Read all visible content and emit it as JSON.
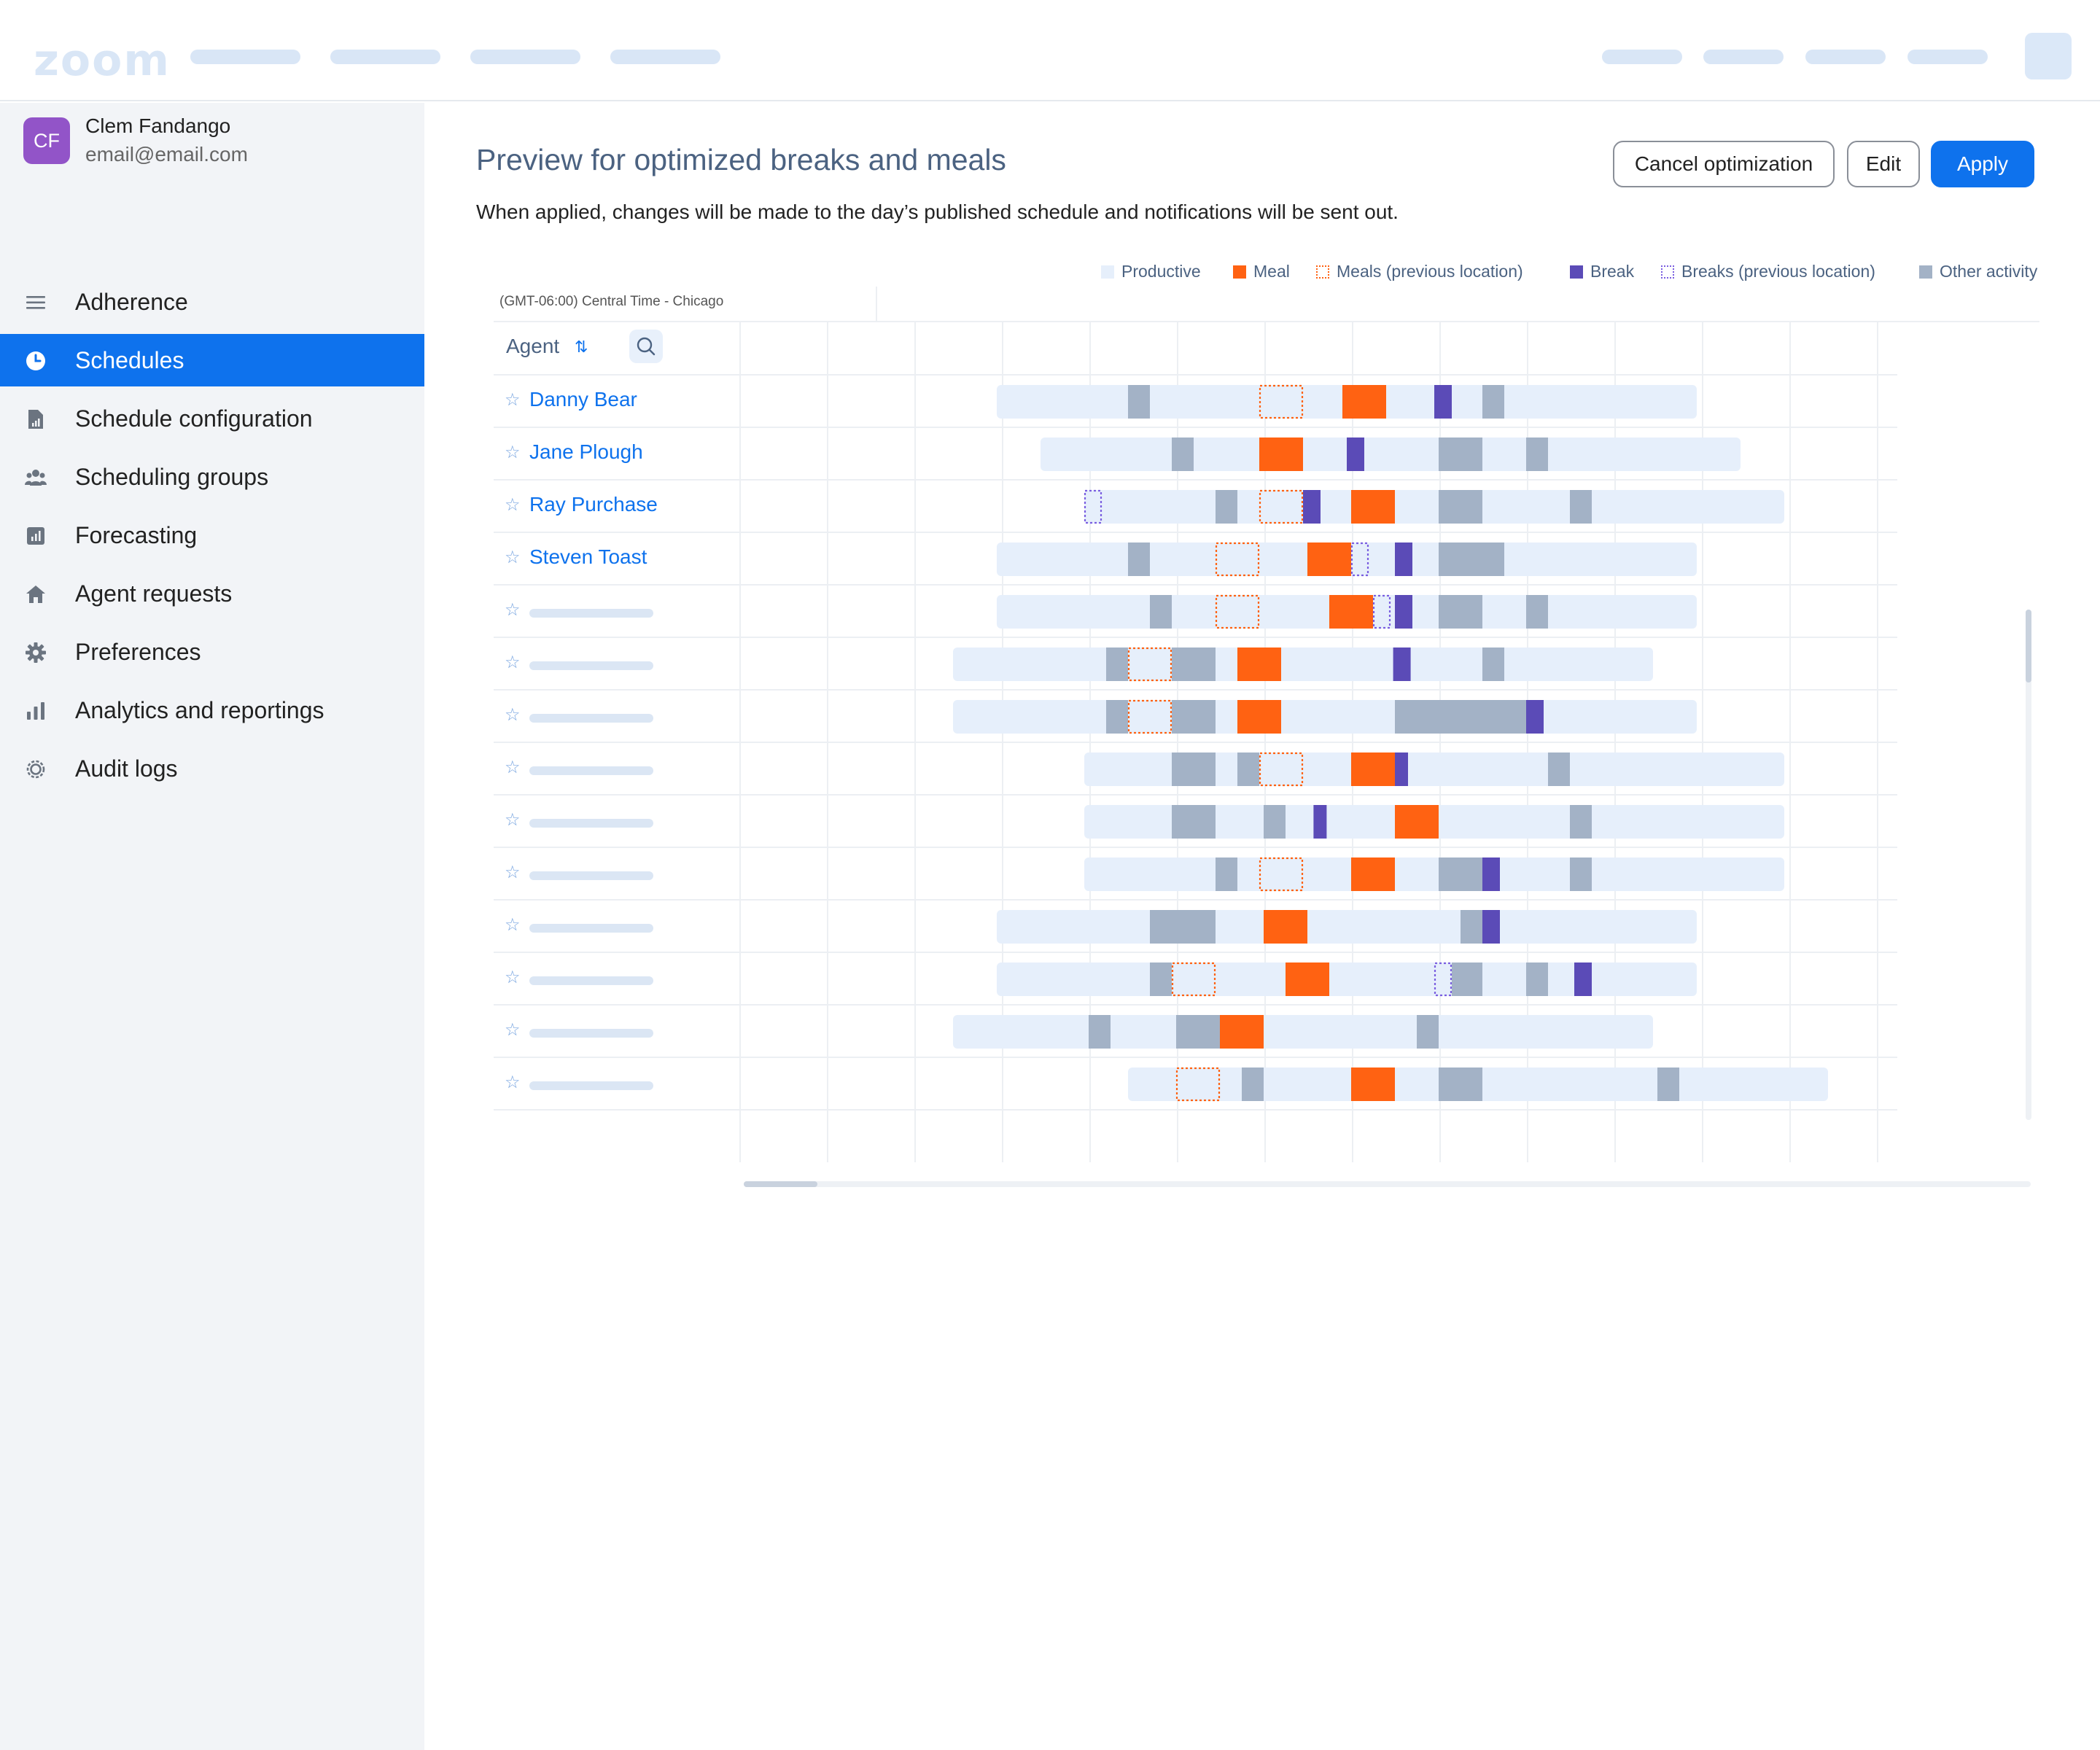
{
  "app": {
    "logo": "zoom"
  },
  "user": {
    "initials": "CF",
    "name": "Clem Fandango",
    "email": "email@email.com"
  },
  "sidebar": {
    "items": [
      {
        "label": "Adherence",
        "icon": "menu-lines-icon",
        "active": false
      },
      {
        "label": "Schedules",
        "icon": "clock-icon",
        "active": true
      },
      {
        "label": "Schedule configuration",
        "icon": "document-chart-icon",
        "active": false
      },
      {
        "label": "Scheduling groups",
        "icon": "users-group-icon",
        "active": false
      },
      {
        "label": "Forecasting",
        "icon": "chart-square-icon",
        "active": false
      },
      {
        "label": "Agent requests",
        "icon": "home-icon",
        "active": false
      },
      {
        "label": "Preferences",
        "icon": "gear-icon",
        "active": false
      },
      {
        "label": "Analytics and reportings",
        "icon": "bar-chart-icon",
        "active": false
      },
      {
        "label": "Audit logs",
        "icon": "cog-outline-icon",
        "active": false
      }
    ]
  },
  "page": {
    "title": "Preview for optimized breaks and meals",
    "description": "When applied, changes will be made to the day’s published schedule and notifications will be sent out.",
    "buttons": {
      "cancel": "Cancel optimization",
      "edit": "Edit",
      "apply": "Apply"
    }
  },
  "legend": [
    {
      "label": "Productive",
      "type": "productive"
    },
    {
      "label": "Meal",
      "type": "meal"
    },
    {
      "label": "Meals (previous location)",
      "type": "meal_prev"
    },
    {
      "label": "Break",
      "type": "break"
    },
    {
      "label": "Breaks (previous location)",
      "type": "break_prev"
    },
    {
      "label": "Other activity",
      "type": "other"
    }
  ],
  "colors": {
    "productive": "#e6effb",
    "meal": "#ff6212",
    "meal_prev": "#ff6212",
    "break": "#5b4bb7",
    "break_prev": "#7a5ee0",
    "other": "#a3b2c6",
    "accent": "#0e72ed"
  },
  "grid": {
    "timezone": "(GMT-06:00) Central Time - Chicago",
    "agent_header": "Agent"
  },
  "agents": [
    {
      "name": "Danny Bear",
      "shift": [
        3,
        11
      ],
      "segments": [
        {
          "t": "other",
          "s": 4.5,
          "e": 4.75
        },
        {
          "t": "meal_prev",
          "s": 6.0,
          "e": 6.5
        },
        {
          "t": "meal",
          "s": 6.95,
          "e": 7.45
        },
        {
          "t": "break",
          "s": 8.0,
          "e": 8.2
        },
        {
          "t": "other",
          "s": 8.55,
          "e": 8.8
        }
      ]
    },
    {
      "name": "Jane Plough",
      "shift": [
        3.5,
        11.5
      ],
      "segments": [
        {
          "t": "other",
          "s": 5.0,
          "e": 5.25
        },
        {
          "t": "meal",
          "s": 6.0,
          "e": 6.5
        },
        {
          "t": "break",
          "s": 7.0,
          "e": 7.2
        },
        {
          "t": "other",
          "s": 8.05,
          "e": 8.55
        },
        {
          "t": "other",
          "s": 9.05,
          "e": 9.3
        }
      ]
    },
    {
      "name": "Ray Purchase",
      "shift": [
        4,
        12
      ],
      "segments": [
        {
          "t": "break_prev",
          "s": 4.0,
          "e": 4.2
        },
        {
          "t": "other",
          "s": 5.5,
          "e": 5.75
        },
        {
          "t": "meal_prev",
          "s": 6.0,
          "e": 6.5
        },
        {
          "t": "break",
          "s": 6.5,
          "e": 6.7
        },
        {
          "t": "meal",
          "s": 7.05,
          "e": 7.55
        },
        {
          "t": "other",
          "s": 8.05,
          "e": 8.55
        },
        {
          "t": "other",
          "s": 9.55,
          "e": 9.8
        }
      ]
    },
    {
      "name": "Steven Toast",
      "shift": [
        3,
        11
      ],
      "segments": [
        {
          "t": "other",
          "s": 4.5,
          "e": 4.75
        },
        {
          "t": "meal_prev",
          "s": 5.5,
          "e": 6.0
        },
        {
          "t": "meal",
          "s": 6.55,
          "e": 7.05
        },
        {
          "t": "break_prev",
          "s": 7.05,
          "e": 7.25
        },
        {
          "t": "break",
          "s": 7.55,
          "e": 7.75
        },
        {
          "t": "other",
          "s": 8.05,
          "e": 8.8
        }
      ]
    },
    {
      "name": "",
      "shift": [
        3,
        11
      ],
      "segments": [
        {
          "t": "other",
          "s": 4.75,
          "e": 5.0
        },
        {
          "t": "meal_prev",
          "s": 5.5,
          "e": 6.0
        },
        {
          "t": "meal",
          "s": 6.8,
          "e": 7.3
        },
        {
          "t": "break_prev",
          "s": 7.3,
          "e": 7.5
        },
        {
          "t": "break",
          "s": 7.55,
          "e": 7.75
        },
        {
          "t": "other",
          "s": 8.05,
          "e": 8.55
        },
        {
          "t": "other",
          "s": 9.05,
          "e": 9.3
        }
      ]
    },
    {
      "name": "",
      "shift": [
        2.5,
        10.5
      ],
      "segments": [
        {
          "t": "other",
          "s": 4.25,
          "e": 4.5
        },
        {
          "t": "meal_prev",
          "s": 4.5,
          "e": 5.0
        },
        {
          "t": "other",
          "s": 5.0,
          "e": 5.5
        },
        {
          "t": "meal",
          "s": 5.75,
          "e": 6.25
        },
        {
          "t": "break",
          "s": 7.53,
          "e": 7.73
        },
        {
          "t": "other",
          "s": 8.55,
          "e": 8.8
        }
      ]
    },
    {
      "name": "",
      "shift": [
        2.5,
        11
      ],
      "segments": [
        {
          "t": "other",
          "s": 4.25,
          "e": 4.5
        },
        {
          "t": "meal_prev",
          "s": 4.5,
          "e": 5.0
        },
        {
          "t": "other",
          "s": 5.0,
          "e": 5.5
        },
        {
          "t": "meal",
          "s": 5.75,
          "e": 6.25
        },
        {
          "t": "other",
          "s": 7.55,
          "e": 9.05
        },
        {
          "t": "break",
          "s": 9.05,
          "e": 9.25
        }
      ]
    },
    {
      "name": "",
      "shift": [
        4,
        12
      ],
      "segments": [
        {
          "t": "other",
          "s": 5.0,
          "e": 5.5
        },
        {
          "t": "other",
          "s": 5.75,
          "e": 6.0
        },
        {
          "t": "meal_prev",
          "s": 6.0,
          "e": 6.5
        },
        {
          "t": "meal",
          "s": 7.05,
          "e": 7.55
        },
        {
          "t": "break",
          "s": 7.55,
          "e": 7.7
        },
        {
          "t": "other",
          "s": 9.3,
          "e": 9.55
        }
      ]
    },
    {
      "name": "",
      "shift": [
        4,
        12
      ],
      "segments": [
        {
          "t": "other",
          "s": 5.0,
          "e": 5.5
        },
        {
          "t": "other",
          "s": 6.05,
          "e": 6.3
        },
        {
          "t": "break",
          "s": 6.62,
          "e": 6.77
        },
        {
          "t": "meal",
          "s": 7.55,
          "e": 8.05
        },
        {
          "t": "other",
          "s": 9.55,
          "e": 9.8
        }
      ]
    },
    {
      "name": "",
      "shift": [
        4,
        12
      ],
      "segments": [
        {
          "t": "other",
          "s": 5.5,
          "e": 5.75
        },
        {
          "t": "meal_prev",
          "s": 6.0,
          "e": 6.5
        },
        {
          "t": "meal",
          "s": 7.05,
          "e": 7.55
        },
        {
          "t": "other",
          "s": 8.05,
          "e": 8.55
        },
        {
          "t": "break",
          "s": 8.55,
          "e": 8.75
        },
        {
          "t": "other",
          "s": 9.55,
          "e": 9.8
        }
      ]
    },
    {
      "name": "",
      "shift": [
        3,
        11
      ],
      "segments": [
        {
          "t": "other",
          "s": 4.75,
          "e": 5.5
        },
        {
          "t": "meal",
          "s": 6.05,
          "e": 6.55
        },
        {
          "t": "other",
          "s": 8.3,
          "e": 8.55
        },
        {
          "t": "break",
          "s": 8.55,
          "e": 8.75
        }
      ]
    },
    {
      "name": "",
      "shift": [
        3,
        11
      ],
      "segments": [
        {
          "t": "other",
          "s": 4.75,
          "e": 5.0
        },
        {
          "t": "meal_prev",
          "s": 5.0,
          "e": 5.5
        },
        {
          "t": "meal",
          "s": 6.3,
          "e": 6.8
        },
        {
          "t": "break_prev",
          "s": 8.0,
          "e": 8.2
        },
        {
          "t": "other",
          "s": 8.2,
          "e": 8.55
        },
        {
          "t": "other",
          "s": 9.05,
          "e": 9.3
        },
        {
          "t": "break",
          "s": 9.6,
          "e": 9.8
        }
      ]
    },
    {
      "name": "",
      "shift": [
        2.5,
        10.5
      ],
      "segments": [
        {
          "t": "other",
          "s": 4.05,
          "e": 4.3
        },
        {
          "t": "other",
          "s": 5.05,
          "e": 5.55
        },
        {
          "t": "meal",
          "s": 5.55,
          "e": 6.05
        },
        {
          "t": "other",
          "s": 7.8,
          "e": 8.05
        }
      ]
    },
    {
      "name": "",
      "shift": [
        4.5,
        12.5
      ],
      "segments": [
        {
          "t": "meal_prev",
          "s": 5.05,
          "e": 5.55
        },
        {
          "t": "other",
          "s": 5.8,
          "e": 6.05
        },
        {
          "t": "meal",
          "s": 7.05,
          "e": 7.55
        },
        {
          "t": "other",
          "s": 8.05,
          "e": 8.55
        },
        {
          "t": "other",
          "s": 10.55,
          "e": 10.8
        }
      ]
    }
  ]
}
